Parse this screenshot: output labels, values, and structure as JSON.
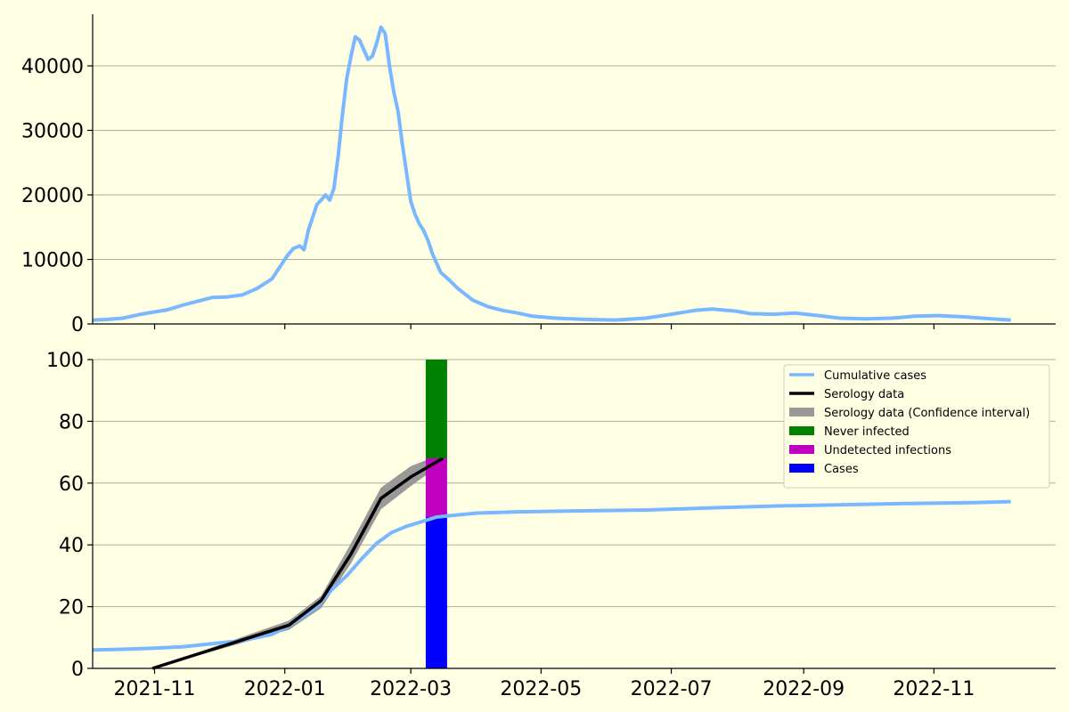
{
  "chart_data": [
    {
      "type": "line",
      "panel": "daily-cases",
      "title": "",
      "xlabel": "",
      "ylabel": "",
      "x_type": "date",
      "xlim": [
        "2021-10-03",
        "2022-12-28"
      ],
      "ylim": [
        0,
        48000
      ],
      "yticks": [
        0,
        10000,
        20000,
        30000,
        40000
      ],
      "ytick_labels": [
        "0",
        "10000",
        "20000",
        "30000",
        "40000"
      ],
      "xticks": [
        "2021-11-01",
        "2022-01-01",
        "2022-03-01",
        "2022-05-01",
        "2022-07-01",
        "2022-09-01",
        "2022-11-01"
      ],
      "grid": "horizontal",
      "legend": "none",
      "colors": {
        "series": "#79b8ff",
        "grid": "#b0b0a0",
        "background": "#ffffe4"
      },
      "series": [
        {
          "values": [
            [
              "2021-10-03",
              600
            ],
            [
              "2021-10-10",
              700
            ],
            [
              "2021-10-17",
              900
            ],
            [
              "2021-10-24",
              1400
            ],
            [
              "2021-10-31",
              1800
            ],
            [
              "2021-11-07",
              2200
            ],
            [
              "2021-11-14",
              2900
            ],
            [
              "2021-11-21",
              3500
            ],
            [
              "2021-11-28",
              4100
            ],
            [
              "2021-12-05",
              4200
            ],
            [
              "2021-12-12",
              4500
            ],
            [
              "2021-12-19",
              5500
            ],
            [
              "2021-12-26",
              7000
            ],
            [
              "2021-12-30",
              9000
            ],
            [
              "2022-01-02",
              10500
            ],
            [
              "2022-01-05",
              11700
            ],
            [
              "2022-01-08",
              12100
            ],
            [
              "2022-01-10",
              11500
            ],
            [
              "2022-01-12",
              14500
            ],
            [
              "2022-01-14",
              16500
            ],
            [
              "2022-01-16",
              18500
            ],
            [
              "2022-01-18",
              19200
            ],
            [
              "2022-01-20",
              20000
            ],
            [
              "2022-01-22",
              19200
            ],
            [
              "2022-01-24",
              21000
            ],
            [
              "2022-01-26",
              26000
            ],
            [
              "2022-01-28",
              32500
            ],
            [
              "2022-01-30",
              38000
            ],
            [
              "2022-02-01",
              41500
            ],
            [
              "2022-02-03",
              44500
            ],
            [
              "2022-02-05",
              44000
            ],
            [
              "2022-02-07",
              42500
            ],
            [
              "2022-02-09",
              41000
            ],
            [
              "2022-02-11",
              41500
            ],
            [
              "2022-02-13",
              43500
            ],
            [
              "2022-02-15",
              46000
            ],
            [
              "2022-02-17",
              45000
            ],
            [
              "2022-02-19",
              40000
            ],
            [
              "2022-02-21",
              36000
            ],
            [
              "2022-02-23",
              33000
            ],
            [
              "2022-02-25",
              28000
            ],
            [
              "2022-02-27",
              23500
            ],
            [
              "2022-03-01",
              19000
            ],
            [
              "2022-03-03",
              17000
            ],
            [
              "2022-03-05",
              15500
            ],
            [
              "2022-03-07",
              14500
            ],
            [
              "2022-03-09",
              13000
            ],
            [
              "2022-03-11",
              11000
            ],
            [
              "2022-03-15",
              8000
            ],
            [
              "2022-03-19",
              6800
            ],
            [
              "2022-03-23",
              5500
            ],
            [
              "2022-03-30",
              3700
            ],
            [
              "2022-04-06",
              2700
            ],
            [
              "2022-04-13",
              2100
            ],
            [
              "2022-04-20",
              1700
            ],
            [
              "2022-04-27",
              1200
            ],
            [
              "2022-05-08",
              900
            ],
            [
              "2022-05-22",
              700
            ],
            [
              "2022-06-05",
              600
            ],
            [
              "2022-06-19",
              900
            ],
            [
              "2022-07-01",
              1500
            ],
            [
              "2022-07-12",
              2100
            ],
            [
              "2022-07-20",
              2300
            ],
            [
              "2022-07-31",
              2000
            ],
            [
              "2022-08-07",
              1600
            ],
            [
              "2022-08-18",
              1500
            ],
            [
              "2022-08-28",
              1700
            ],
            [
              "2022-09-08",
              1300
            ],
            [
              "2022-09-18",
              900
            ],
            [
              "2022-09-30",
              800
            ],
            [
              "2022-10-12",
              900
            ],
            [
              "2022-10-23",
              1200
            ],
            [
              "2022-11-03",
              1300
            ],
            [
              "2022-11-15",
              1100
            ],
            [
              "2022-11-28",
              800
            ],
            [
              "2022-12-07",
              600
            ]
          ]
        }
      ]
    },
    {
      "type": "line",
      "panel": "cumulative-percent",
      "title": "",
      "xlabel": "",
      "ylabel": "",
      "x_type": "date",
      "xlim": [
        "2021-10-03",
        "2022-12-28"
      ],
      "ylim": [
        0,
        100
      ],
      "yticks": [
        0,
        20,
        40,
        60,
        80,
        100
      ],
      "ytick_labels": [
        "0",
        "20",
        "40",
        "60",
        "80",
        "100"
      ],
      "xticks": [
        "2021-11-01",
        "2022-01-01",
        "2022-03-01",
        "2022-05-01",
        "2022-07-01",
        "2022-09-01",
        "2022-11-01"
      ],
      "xtick_labels": [
        "2021-11",
        "2022-01",
        "2022-03",
        "2022-05",
        "2022-07",
        "2022-09",
        "2022-11"
      ],
      "grid": "horizontal",
      "legend": "top-right",
      "colors": {
        "cumulative": "#79b8ff",
        "serology": "#000000",
        "ci": "#999999",
        "never": "#008000",
        "undetected": "#bf00bf",
        "cases": "#0000ff"
      },
      "series": [
        {
          "name": "Cumulative cases",
          "values": [
            [
              "2021-10-03",
              6
            ],
            [
              "2021-10-17",
              6.2
            ],
            [
              "2021-10-31",
              6.5
            ],
            [
              "2021-11-14",
              7
            ],
            [
              "2021-11-28",
              8
            ],
            [
              "2021-12-12",
              9
            ],
            [
              "2021-12-26",
              11
            ],
            [
              "2022-01-02",
              13.5
            ],
            [
              "2022-01-09",
              16.5
            ],
            [
              "2022-01-16",
              20
            ],
            [
              "2022-01-23",
              25.5
            ],
            [
              "2022-01-30",
              30
            ],
            [
              "2022-02-06",
              35.5
            ],
            [
              "2022-02-13",
              40.5
            ],
            [
              "2022-02-20",
              44
            ],
            [
              "2022-02-27",
              46
            ],
            [
              "2022-03-06",
              47.5
            ],
            [
              "2022-03-13",
              49
            ],
            [
              "2022-03-20",
              49.5
            ],
            [
              "2022-04-01",
              50.3
            ],
            [
              "2022-04-20",
              50.7
            ],
            [
              "2022-05-20",
              51
            ],
            [
              "2022-06-20",
              51.3
            ],
            [
              "2022-07-20",
              52
            ],
            [
              "2022-08-20",
              52.6
            ],
            [
              "2022-09-20",
              53
            ],
            [
              "2022-10-20",
              53.4
            ],
            [
              "2022-11-20",
              53.7
            ],
            [
              "2022-12-07",
              54
            ]
          ]
        },
        {
          "name": "Serology data",
          "values": [
            [
              "2021-10-31",
              0
            ],
            [
              "2022-01-03",
              14
            ],
            [
              "2022-01-18",
              22
            ],
            [
              "2022-02-01",
              37
            ],
            [
              "2022-02-15",
              55
            ],
            [
              "2022-03-01",
              62
            ],
            [
              "2022-03-16",
              68
            ]
          ]
        },
        {
          "name": "Serology data (Confidence interval)",
          "lower": [
            [
              "2021-10-31",
              0
            ],
            [
              "2022-01-03",
              12.5
            ],
            [
              "2022-01-18",
              19.5
            ],
            [
              "2022-02-01",
              34
            ],
            [
              "2022-02-15",
              51.5
            ],
            [
              "2022-03-01",
              59
            ],
            [
              "2022-03-16",
              66.5
            ]
          ],
          "upper": [
            [
              "2021-10-31",
              0
            ],
            [
              "2022-01-03",
              15.5
            ],
            [
              "2022-01-18",
              23.5
            ],
            [
              "2022-02-01",
              40.5
            ],
            [
              "2022-02-15",
              58.5
            ],
            [
              "2022-03-01",
              65.5
            ],
            [
              "2022-03-16",
              69.5
            ]
          ]
        }
      ],
      "stacked_bar": {
        "date": "2022-03-13",
        "segments": [
          {
            "name": "Cases",
            "from": 0,
            "to": 49,
            "color": "#0000ff"
          },
          {
            "name": "Undetected infections",
            "from": 49,
            "to": 68,
            "color": "#bf00bf"
          },
          {
            "name": "Never infected",
            "from": 68,
            "to": 100,
            "color": "#008000"
          }
        ]
      },
      "legend_entries": [
        {
          "label": "Cumulative cases",
          "kind": "line",
          "color": "#79b8ff"
        },
        {
          "label": "Serology data",
          "kind": "line",
          "color": "#000000"
        },
        {
          "label": "Serology data (Confidence interval)",
          "kind": "patch",
          "color": "#999999"
        },
        {
          "label": "Never infected",
          "kind": "patch",
          "color": "#008000"
        },
        {
          "label": "Undetected infections",
          "kind": "patch",
          "color": "#bf00bf"
        },
        {
          "label": "Cases",
          "kind": "patch",
          "color": "#0000ff"
        }
      ]
    }
  ]
}
